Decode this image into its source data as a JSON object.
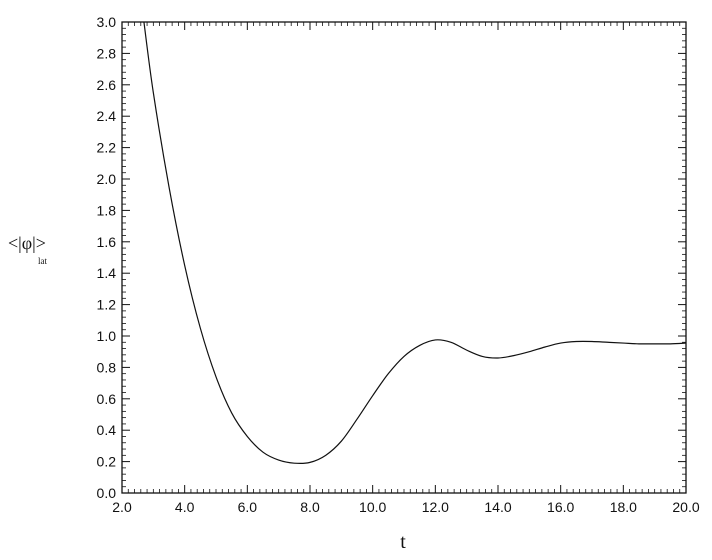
{
  "chart_data": {
    "type": "line",
    "xlabel": "t",
    "ylabel": "<|φ|>",
    "ylabel_subscript": "lat",
    "xlim": [
      2.0,
      20.0
    ],
    "ylim": [
      0.0,
      3.0
    ],
    "xticks": [
      "2.0",
      "4.0",
      "6.0",
      "8.0",
      "10.0",
      "12.0",
      "14.0",
      "16.0",
      "18.0",
      "20.0"
    ],
    "yticks": [
      "0.0",
      "0.2",
      "0.4",
      "0.6",
      "0.8",
      "1.0",
      "1.2",
      "1.4",
      "1.6",
      "1.8",
      "2.0",
      "2.2",
      "2.4",
      "2.6",
      "2.8",
      "3.0"
    ],
    "grid": false,
    "series": [
      {
        "color": "#111111",
        "x": [
          2.7,
          3.0,
          3.5,
          4.0,
          4.5,
          5.0,
          5.5,
          6.0,
          6.5,
          7.0,
          7.5,
          8.0,
          8.5,
          9.0,
          9.5,
          10.0,
          10.5,
          11.0,
          11.5,
          12.0,
          12.5,
          13.0,
          13.5,
          14.0,
          14.5,
          15.0,
          15.5,
          16.0,
          16.5,
          17.0,
          17.5,
          18.0,
          18.5,
          19.0,
          19.5,
          20.0
        ],
        "y": [
          3.0,
          2.55,
          1.95,
          1.45,
          1.05,
          0.74,
          0.51,
          0.36,
          0.26,
          0.21,
          0.19,
          0.195,
          0.24,
          0.33,
          0.47,
          0.62,
          0.76,
          0.87,
          0.94,
          0.975,
          0.96,
          0.91,
          0.87,
          0.86,
          0.875,
          0.9,
          0.93,
          0.955,
          0.965,
          0.965,
          0.96,
          0.955,
          0.95,
          0.95,
          0.95,
          0.955
        ]
      }
    ]
  }
}
